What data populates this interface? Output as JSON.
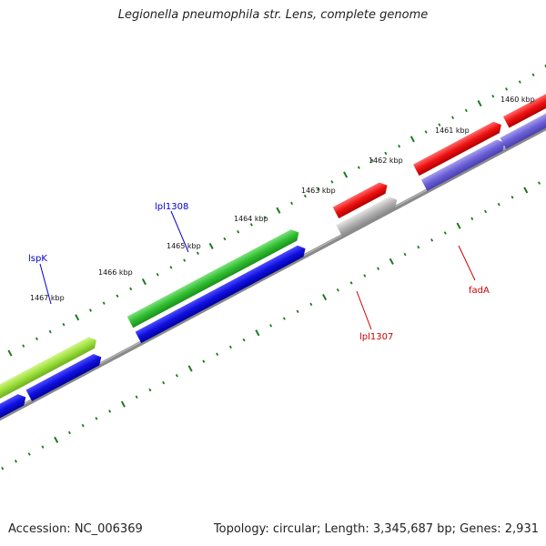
{
  "title": "Legionella pneumophila str. Lens, complete genome",
  "footer": {
    "accession": "Accession: NC_006369",
    "summary": "Topology: circular; Length: 3,345,687 bp; Genes: 2,931"
  },
  "map": {
    "ticks": [
      "1460 kbp",
      "1461 kbp",
      "1462 kbp",
      "1463 kbp",
      "1464 kbp",
      "1465 kbp",
      "1466 kbp",
      "1467 kbp"
    ],
    "gene_labels": [
      {
        "text": "lspK",
        "color": "#0000cc"
      },
      {
        "text": "lpl1308",
        "color": "#0000cc"
      },
      {
        "text": "lpl1307",
        "color": "#cc0000"
      },
      {
        "text": "fadA",
        "color": "#cc0000"
      }
    ],
    "colors": {
      "backbone": "#8a8a8a",
      "tick": "#1d7a1d",
      "green_feature": "#2fbf2f",
      "lightgreen_feature": "#9be03a",
      "blue_feature": "#1010e0",
      "red_feature": "#ee1111",
      "gray_feature": "#b4b4b4",
      "purple_feature": "#6b5fd6"
    }
  }
}
